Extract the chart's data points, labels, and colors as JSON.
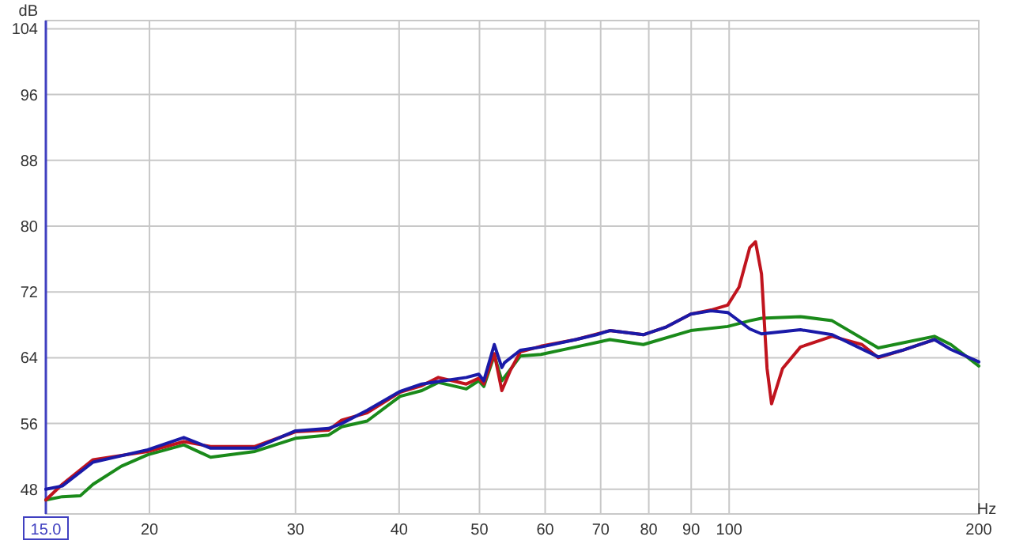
{
  "chart_data": {
    "type": "line",
    "xlabel": "Hz",
    "ylabel": "dB",
    "log": "x",
    "grid": true,
    "marker": "none",
    "line_style": "solid",
    "xlim": [
      15,
      200
    ],
    "ylim": [
      45,
      105
    ],
    "xticks": [
      {
        "value": 15,
        "label": "15.0"
      },
      20,
      30,
      40,
      50,
      60,
      70,
      80,
      90,
      100,
      200
    ],
    "yticks": [
      48,
      56,
      64,
      72,
      80,
      88,
      96,
      104
    ],
    "series": [
      {
        "color": "#1a8a1a",
        "x": [
          15,
          15.7,
          16.5,
          17.1,
          18.5,
          19.9,
          22,
          23.7,
          26.8,
          30,
          32.9,
          34.1,
          36.6,
          40.1,
          42.6,
          44.6,
          48.2,
          49.9,
          50.6,
          52.1,
          53.2,
          54.5,
          56,
          59.3,
          65.3,
          71.8,
          78.8,
          89.9,
          99.6,
          105.9,
          109.4,
          121.9,
          133.1,
          151.3,
          161.7,
          176.8,
          185.1,
          200
        ],
        "values": [
          46.7,
          47.1,
          47.2,
          48.6,
          50.8,
          52.2,
          53.4,
          51.9,
          52.6,
          54.2,
          54.6,
          55.6,
          56.3,
          59.3,
          60,
          61,
          60.2,
          61.2,
          60.5,
          64.3,
          61.2,
          62.6,
          64.2,
          64.4,
          65.3,
          66.2,
          65.6,
          67.3,
          67.8,
          68.5,
          68.8,
          69,
          68.5,
          65.2,
          65.8,
          66.6,
          65.6,
          63
        ]
      },
      {
        "color": "#c0141e",
        "x": [
          15,
          15.7,
          17.1,
          19.9,
          22,
          23.7,
          26.8,
          30,
          32.9,
          34.1,
          36.6,
          40.1,
          42.6,
          44.6,
          48.2,
          49.9,
          50.6,
          52.1,
          53.2,
          54.5,
          56,
          59.3,
          65.3,
          71.8,
          78.8,
          83.8,
          89.9,
          95.1,
          99.6,
          102.8,
          105.9,
          107.6,
          109.4,
          111.1,
          112.5,
          116,
          121.9,
          133.1,
          144.6,
          151.3,
          161.7,
          176.8
        ],
        "values": [
          46.7,
          48.6,
          51.6,
          52.6,
          53.8,
          53.2,
          53.2,
          55,
          55.2,
          56.4,
          57.3,
          59.8,
          60.6,
          61.6,
          60.8,
          61.5,
          60.8,
          64.5,
          60,
          62.5,
          64.7,
          65.4,
          66.2,
          67.3,
          66.8,
          67.7,
          69.3,
          69.8,
          70.4,
          72.6,
          77.4,
          78.1,
          74.2,
          62.7,
          58.4,
          62.7,
          65.3,
          66.6,
          65.6,
          64,
          64.9,
          66.2
        ]
      },
      {
        "color": "#1a1aa8",
        "x": [
          15,
          15.7,
          17.1,
          19.9,
          22,
          23.7,
          26.8,
          30,
          32.9,
          34.1,
          36.6,
          40.1,
          42.6,
          44.6,
          48.2,
          49.9,
          50.6,
          52.1,
          53.2,
          53.6,
          56,
          59.3,
          65.3,
          69.2,
          71.8,
          78.8,
          83.8,
          89.9,
          95.1,
          99.6,
          105.9,
          109.4,
          121.9,
          133.1,
          151.3,
          161.7,
          173.2,
          176.8,
          185.1,
          198,
          200
        ],
        "values": [
          48,
          48.4,
          51.3,
          52.8,
          54.3,
          53,
          53,
          55.1,
          55.4,
          56,
          57.6,
          59.9,
          60.8,
          61.1,
          61.6,
          62,
          61.2,
          65.6,
          62.8,
          63.4,
          64.9,
          65.3,
          66.2,
          66.8,
          67.3,
          66.8,
          67.7,
          69.3,
          69.7,
          69.5,
          67.5,
          66.9,
          67.4,
          66.8,
          64.1,
          64.9,
          65.9,
          66.2,
          65,
          63.7,
          63.5
        ]
      }
    ]
  }
}
